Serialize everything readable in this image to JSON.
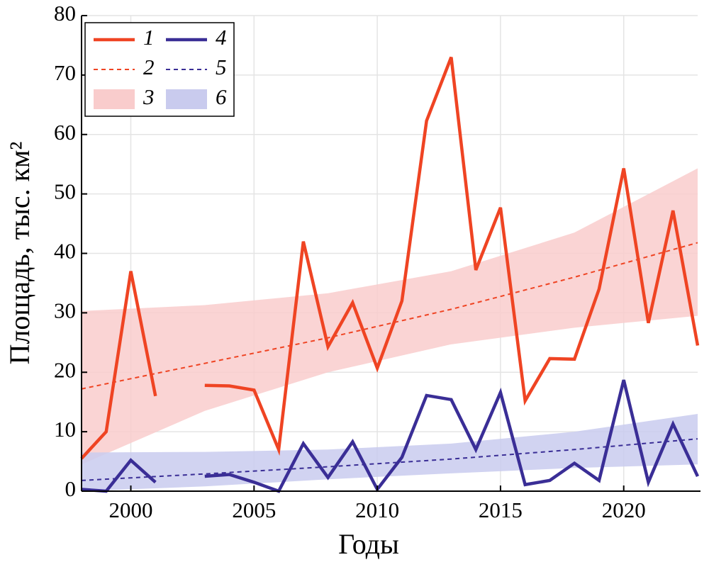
{
  "chart_data": {
    "type": "line",
    "x_label": "Годы",
    "y_label": "Площадь, тыс. км²",
    "x": [
      1998,
      1999,
      2000,
      2001,
      2002,
      2003,
      2004,
      2005,
      2006,
      2007,
      2008,
      2009,
      2010,
      2011,
      2012,
      2013,
      2014,
      2015,
      2016,
      2017,
      2018,
      2019,
      2020,
      2021,
      2022,
      2023
    ],
    "xlim": [
      1998,
      2023
    ],
    "ylim": [
      0,
      80
    ],
    "xticks": [
      2000,
      2005,
      2010,
      2015,
      2020
    ],
    "yticks": [
      0,
      10,
      20,
      30,
      40,
      50,
      60,
      70,
      80
    ],
    "grid": true,
    "legend": "upper left",
    "series": [
      {
        "name": "1",
        "color": "#ef4423",
        "style": "solid",
        "values": [
          5.5,
          10,
          37,
          16,
          null,
          17.8,
          17.7,
          17,
          7,
          42,
          24.3,
          31.7,
          20.7,
          32,
          62.3,
          73,
          37.2,
          47.7,
          15.2,
          22.3,
          22.2,
          34,
          54.3,
          28.3,
          47.2,
          24.5
        ]
      },
      {
        "name": "2",
        "color": "#ef4423",
        "style": "dashed",
        "x": [
          1998,
          2003,
          2008,
          2013,
          2018,
          2023
        ],
        "values": [
          17.2,
          21.5,
          25.8,
          30.6,
          36,
          41.8
        ]
      },
      {
        "name": "3",
        "color": "#f9cccc",
        "style": "band",
        "x": [
          1998,
          2003,
          2008,
          2013,
          2018,
          2023
        ],
        "lower": [
          4.5,
          13.5,
          20,
          24.7,
          27.5,
          29.5
        ],
        "upper": [
          30.3,
          31.3,
          33.3,
          37,
          43.5,
          54.3
        ]
      },
      {
        "name": "4",
        "color": "#3a2e96",
        "style": "solid",
        "values": [
          0.3,
          0,
          5.2,
          1.5,
          null,
          2.5,
          2.8,
          1.5,
          0,
          8,
          2.3,
          8.3,
          0.3,
          5.7,
          16.1,
          15.4,
          7,
          16.6,
          1.1,
          1.8,
          4.7,
          1.8,
          18.7,
          1.5,
          11.3,
          2.5
        ]
      },
      {
        "name": "5",
        "color": "#3a2e96",
        "style": "dashed",
        "x": [
          1998,
          2003,
          2008,
          2013,
          2018,
          2023
        ],
        "values": [
          1.8,
          2.9,
          4.1,
          5.4,
          7,
          8.8
        ]
      },
      {
        "name": "6",
        "color": "#c9cbee",
        "style": "band",
        "x": [
          1998,
          2003,
          2008,
          2013,
          2018,
          2023
        ],
        "lower": [
          0,
          0.8,
          2,
          3,
          3.9,
          4.5
        ],
        "upper": [
          6.5,
          6.6,
          7,
          8,
          10,
          13
        ]
      }
    ]
  }
}
